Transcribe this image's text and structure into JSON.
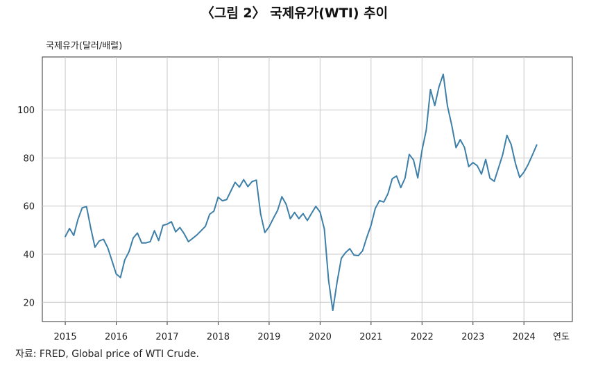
{
  "chart_data": {
    "type": "line",
    "title": "〈그림 2〉 국제유가(WTI) 추이",
    "ylabel": "국제유가(달러/배럴)",
    "xlabel": "연도",
    "source": "자료: FRED, Global price of WTI Crude.",
    "ylim": [
      12,
      122
    ],
    "yticks": [
      20,
      40,
      60,
      80,
      100
    ],
    "xlim": [
      2014.55,
      2024.95
    ],
    "xticks": [
      "2015",
      "2016",
      "2017",
      "2018",
      "2019",
      "2020",
      "2021",
      "2022",
      "2023",
      "2024"
    ],
    "grid": true,
    "line_color": "#3d7fa8",
    "series": [
      {
        "x_start": 2015.0,
        "x_step": 0.0833333,
        "values": [
          47.3,
          50.7,
          47.8,
          54.5,
          59.3,
          59.8,
          50.9,
          42.9,
          45.5,
          46.2,
          42.7,
          37.3,
          31.8,
          30.3,
          37.6,
          41.0,
          46.7,
          48.8,
          44.7,
          44.7,
          45.2,
          49.8,
          45.7,
          52.0,
          52.5,
          53.5,
          49.3,
          51.1,
          48.5,
          45.2,
          46.6,
          48.0,
          49.8,
          51.6,
          56.6,
          57.9,
          63.7,
          62.2,
          62.7,
          66.3,
          69.9,
          67.9,
          71.0,
          68.1,
          70.2,
          70.8,
          56.7,
          49.0,
          51.4,
          54.9,
          58.2,
          63.9,
          60.8,
          54.7,
          57.4,
          54.8,
          56.9,
          54.0,
          57.0,
          59.9,
          57.5,
          50.5,
          29.2,
          16.6,
          28.5,
          38.3,
          40.7,
          42.3,
          39.6,
          39.4,
          41.4,
          47.0,
          52.0,
          59.0,
          62.3,
          61.7,
          65.2,
          71.4,
          72.5,
          67.7,
          71.6,
          81.5,
          79.2,
          71.7,
          83.2,
          91.6,
          108.5,
          101.8,
          109.6,
          114.8,
          101.6,
          93.7,
          84.3,
          87.6,
          84.4,
          76.4,
          78.1,
          76.8,
          73.3,
          79.4,
          71.6,
          70.3,
          75.8,
          81.4,
          89.4,
          85.6,
          77.7,
          71.9,
          74.1,
          77.3,
          81.3,
          85.4
        ]
      }
    ]
  }
}
